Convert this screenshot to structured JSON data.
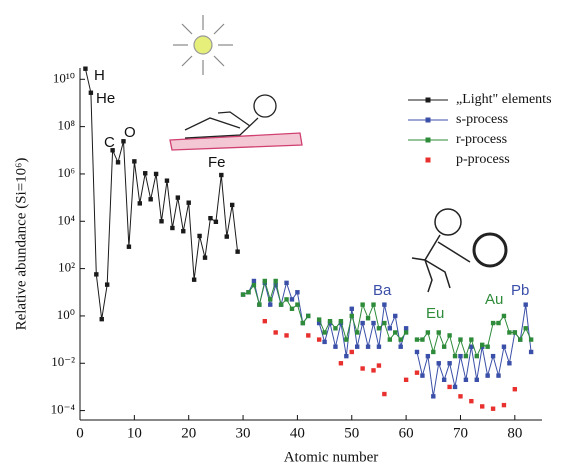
{
  "chart_data": {
    "type": "line",
    "xlabel": "Atomic number",
    "ylabel": "Relative abundance (Si=10⁶)",
    "xlim": [
      0,
      85
    ],
    "xticks": [
      0,
      10,
      20,
      30,
      40,
      50,
      60,
      70,
      80
    ],
    "yscale": "log",
    "ylim": [
      4e-05,
      30000000000
    ],
    "yticks": [
      {
        "value": 0.0001,
        "label": "10⁻⁴"
      },
      {
        "value": 0.01,
        "label": "10⁻²"
      },
      {
        "value": 1,
        "label": "10⁰"
      },
      {
        "value": 100,
        "label": "10²"
      },
      {
        "value": 10000,
        "label": "10⁴"
      },
      {
        "value": 1000000,
        "label": "10⁶"
      },
      {
        "value": 100000000,
        "label": "10⁸"
      },
      {
        "value": 10000000000,
        "label": "10¹⁰"
      }
    ],
    "legend": "upper right",
    "annotations": [
      "H",
      "He",
      "C",
      "O",
      "Fe",
      "Ba",
      "Eu",
      "Au",
      "Pb"
    ],
    "series": [
      {
        "name": "„Light\" elements",
        "color": "#1a1a1a",
        "line": true,
        "x": [
          1,
          2,
          3,
          4,
          5,
          6,
          7,
          8,
          9,
          10,
          11,
          12,
          13,
          14,
          15,
          16,
          17,
          18,
          19,
          20,
          21,
          22,
          23,
          24,
          25,
          26,
          27,
          28,
          29
        ],
        "values": [
          28000000000,
          2700000000,
          57,
          0.73,
          21,
          10000000,
          3100000,
          24000000,
          840,
          3400000,
          57000,
          1070000,
          85000,
          1000000,
          10000,
          520000,
          5200,
          100000,
          3800,
          61000,
          34,
          2400,
          290,
          13500,
          9500,
          900000,
          2250,
          49000,
          520
        ]
      },
      {
        "name": "s-process",
        "color": "#3a4fa8",
        "line": true,
        "x": [
          30,
          31,
          32,
          33,
          34,
          35,
          36,
          37,
          38,
          39,
          40,
          41,
          42,
          43,
          44,
          45,
          46,
          47,
          48,
          49,
          50,
          51,
          52,
          53,
          54,
          55,
          56,
          57,
          58,
          59,
          60,
          61,
          62,
          63,
          64,
          65,
          66,
          67,
          68,
          69,
          70,
          71,
          72,
          73,
          74,
          75,
          76,
          77,
          78,
          79,
          80,
          81,
          82,
          83
        ],
        "values": [
          8,
          10,
          30,
          3,
          25,
          3,
          20,
          3,
          25,
          5,
          10,
          0.5,
          1,
          null,
          0.5,
          0.08,
          0.5,
          0.05,
          0.5,
          0.02,
          2,
          0.05,
          0.5,
          0.05,
          0.5,
          0.05,
          3,
          0.3,
          1,
          0.05,
          0.3,
          null,
          0.03,
          0.003,
          0.02,
          0.0004,
          0.01,
          0.002,
          0.01,
          0.001,
          0.02,
          0.002,
          0.05,
          0.002,
          0.05,
          0.003,
          0.02,
          0.003,
          0.05,
          0.01,
          0.2,
          0.1,
          3,
          0.03
        ]
      },
      {
        "name": "r-process",
        "color": "#2e8b3a",
        "line": true,
        "x": [
          30,
          31,
          32,
          33,
          34,
          35,
          36,
          37,
          38,
          39,
          40,
          41,
          42,
          43,
          44,
          45,
          46,
          47,
          48,
          49,
          50,
          51,
          52,
          53,
          54,
          55,
          56,
          57,
          58,
          59,
          60,
          61,
          62,
          63,
          64,
          65,
          66,
          67,
          68,
          69,
          70,
          71,
          72,
          73,
          74,
          75,
          76,
          77,
          78,
          79,
          80,
          81,
          82,
          83
        ],
        "values": [
          8,
          10,
          20,
          3,
          30,
          5,
          30,
          3,
          5,
          2,
          3,
          0.5,
          1,
          null,
          0.7,
          0.2,
          0.6,
          0.3,
          0.6,
          0.1,
          1,
          0.2,
          3,
          0.8,
          3,
          0.3,
          0.5,
          0.1,
          0.2,
          0.1,
          0.2,
          null,
          0.1,
          0.1,
          0.2,
          0.03,
          0.2,
          0.05,
          0.15,
          0.02,
          0.1,
          0.02,
          0.1,
          0.02,
          0.06,
          0.05,
          0.5,
          0.5,
          1,
          0.2,
          0.2,
          0.1,
          0.3,
          0.1
        ]
      },
      {
        "name": "p-process",
        "color": "#e8312e",
        "line": false,
        "x": [
          34,
          36,
          38,
          42,
          44,
          48,
          50,
          52,
          54,
          55,
          56,
          60,
          62,
          68,
          70,
          72,
          74,
          76,
          78,
          80
        ],
        "values": [
          0.6,
          0.2,
          0.15,
          0.15,
          0.1,
          0.01,
          0.03,
          0.006,
          0.005,
          0.008,
          0.0005,
          0.002,
          0.004,
          0.001,
          0.0004,
          0.00025,
          0.00015,
          0.00012,
          0.00017,
          0.0008
        ]
      }
    ]
  }
}
